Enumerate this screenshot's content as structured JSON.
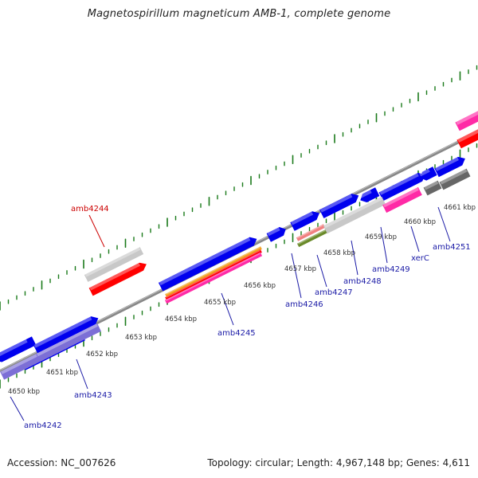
{
  "title": "Magnetospirillum magneticum AMB-1, complete genome",
  "footer": {
    "accession": "Accession: NC_007626",
    "summary": "Topology: circular; Length: 4,967,148 bp; Genes: 4,611"
  },
  "kbp_labels": [
    "4650 kbp",
    "4651 kbp",
    "4652 kbp",
    "4653 kbp",
    "4654 kbp",
    "4655 kbp",
    "4656 kbp",
    "4657 kbp",
    "4658 kbp",
    "4659 kbp",
    "4660 kbp",
    "4661 kbp"
  ],
  "gene_labels": [
    "amb4242",
    "amb4243",
    "amb4244",
    "amb4245",
    "amb4246",
    "amb4247",
    "amb4248",
    "amb4249",
    "xerC",
    "amb4251"
  ],
  "colors": {
    "cds_blue": "#0000ee",
    "highlight_red": "#ff0000",
    "label_blue": "#1a1aa6",
    "label_red": "#cc0000",
    "tick_green": "#1a7a1a",
    "backbone_gray": "#888888",
    "grey_feature": "#c8c8c8",
    "dark_grey_feature": "#666666",
    "lavender_feature": "#7c6fd6",
    "magenta_feature": "#ff2aa6",
    "pink_feature": "#f08080",
    "olive_feature": "#6a8a2a",
    "orange_feature": "#f0a020"
  }
}
